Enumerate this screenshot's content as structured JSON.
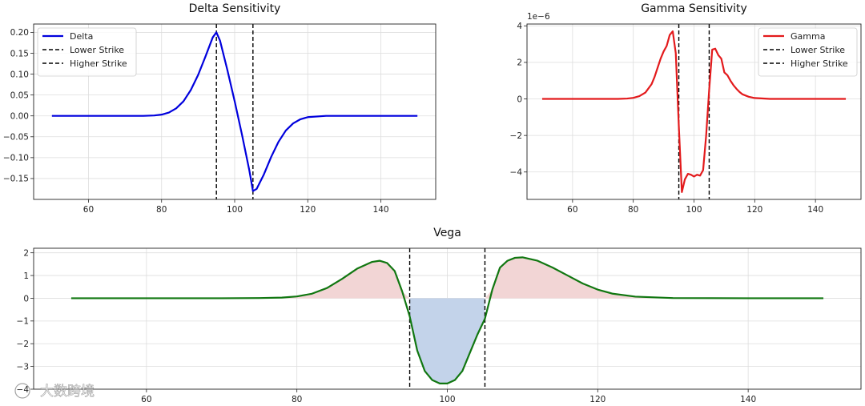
{
  "chart_data": [
    {
      "id": "delta",
      "type": "line",
      "title": "Delta Sensitivity",
      "xlim": [
        45,
        155
      ],
      "ylim": [
        -0.2,
        0.22
      ],
      "xticks": [
        60,
        80,
        100,
        120,
        140
      ],
      "yticks": [
        -0.15,
        -0.1,
        -0.05,
        0.0,
        0.05,
        0.1,
        0.15,
        0.2
      ],
      "ytick_labels": [
        "−0.15",
        "−0.10",
        "−0.05",
        "0.00",
        "0.05",
        "0.10",
        "0.15",
        "0.20"
      ],
      "grid": true,
      "legend": "upper-left",
      "series": [
        {
          "name": "Delta",
          "color": "#0000dd",
          "x": [
            50,
            60,
            70,
            75,
            78,
            80,
            82,
            84,
            86,
            88,
            90,
            92,
            94,
            95,
            96,
            98,
            100,
            102,
            104,
            105,
            106,
            108,
            110,
            112,
            114,
            116,
            118,
            120,
            125,
            130,
            140,
            150
          ],
          "y": [
            0,
            0,
            0,
            0,
            0.001,
            0.003,
            0.008,
            0.018,
            0.035,
            0.062,
            0.098,
            0.142,
            0.188,
            0.2,
            0.18,
            0.11,
            0.035,
            -0.045,
            -0.13,
            -0.18,
            -0.175,
            -0.14,
            -0.098,
            -0.062,
            -0.035,
            -0.018,
            -0.008,
            -0.003,
            0,
            0,
            0,
            0
          ]
        }
      ],
      "vlines": [
        {
          "name": "Lower Strike",
          "x": 95,
          "color": "#000000"
        },
        {
          "name": "Higher Strike",
          "x": 105,
          "color": "#000000"
        }
      ]
    },
    {
      "id": "gamma",
      "type": "line",
      "title": "Gamma Sensitivity",
      "offset_label": "1e−6",
      "xlim": [
        45,
        155
      ],
      "ylim": [
        -5.5,
        4.1
      ],
      "xticks": [
        60,
        80,
        100,
        120,
        140
      ],
      "yticks": [
        -4,
        -2,
        0,
        2,
        4
      ],
      "ytick_labels": [
        "−4",
        "−2",
        "0",
        "2",
        "4"
      ],
      "grid": true,
      "legend": "upper-right",
      "series": [
        {
          "name": "Gamma",
          "color": "#e31a1c",
          "x": [
            50,
            60,
            70,
            75,
            78,
            80,
            82,
            84,
            86,
            87,
            88,
            89,
            90,
            91,
            92,
            93,
            94,
            95,
            96,
            97,
            98,
            99,
            100,
            101,
            102,
            103,
            104,
            105,
            106,
            107,
            108,
            109,
            110,
            111,
            112,
            113,
            114,
            115,
            116,
            118,
            120,
            125,
            130,
            140,
            150
          ],
          "y": [
            0,
            0,
            0,
            0,
            0.02,
            0.06,
            0.15,
            0.35,
            0.8,
            1.2,
            1.7,
            2.2,
            2.6,
            2.9,
            3.5,
            3.7,
            2.5,
            -1.5,
            -5.1,
            -4.4,
            -4.1,
            -4.15,
            -4.25,
            -4.15,
            -4.2,
            -3.9,
            -2.0,
            0.5,
            2.7,
            2.75,
            2.4,
            2.2,
            1.45,
            1.3,
            1.0,
            0.75,
            0.55,
            0.38,
            0.25,
            0.12,
            0.05,
            0,
            0,
            0,
            0
          ]
        }
      ],
      "vlines": [
        {
          "name": "Lower Strike",
          "x": 95,
          "color": "#000000"
        },
        {
          "name": "Higher Strike",
          "x": 105,
          "color": "#000000"
        }
      ]
    },
    {
      "id": "vega",
      "type": "area",
      "title": "Vega",
      "xlim": [
        45,
        155
      ],
      "ylim": [
        -4,
        2.2
      ],
      "xticks": [
        60,
        80,
        100,
        120,
        140
      ],
      "yticks": [
        -4,
        -3,
        -2,
        -1,
        0,
        1,
        2
      ],
      "ytick_labels": [
        "−4",
        "−3",
        "−2",
        "−1",
        "0",
        "1",
        "2"
      ],
      "grid": true,
      "series": [
        {
          "name": "Vega",
          "color": "#117711",
          "x": [
            50,
            60,
            70,
            75,
            78,
            80,
            82,
            84,
            86,
            88,
            90,
            91,
            92,
            93,
            94,
            95,
            96,
            97,
            98,
            99,
            100,
            101,
            102,
            103,
            104,
            105,
            106,
            107,
            108,
            109,
            110,
            112,
            114,
            116,
            118,
            120,
            122,
            125,
            130,
            140,
            150
          ],
          "y": [
            0,
            0,
            0,
            0.01,
            0.03,
            0.08,
            0.2,
            0.45,
            0.85,
            1.3,
            1.6,
            1.65,
            1.55,
            1.2,
            0.3,
            -0.8,
            -2.3,
            -3.2,
            -3.6,
            -3.75,
            -3.75,
            -3.6,
            -3.2,
            -2.4,
            -1.6,
            -0.9,
            0.4,
            1.35,
            1.65,
            1.78,
            1.8,
            1.65,
            1.35,
            1.0,
            0.65,
            0.38,
            0.2,
            0.07,
            0.01,
            0,
            0
          ]
        }
      ],
      "fill_positive_color": "#f2d5d5",
      "fill_negative_color": "#c3d3ea",
      "fill_negative_xrange": [
        95,
        105
      ],
      "vlines": [
        {
          "x": 95,
          "color": "#000000"
        },
        {
          "x": 105,
          "color": "#000000"
        }
      ]
    }
  ],
  "watermark": {
    "text": "大数跨境"
  }
}
